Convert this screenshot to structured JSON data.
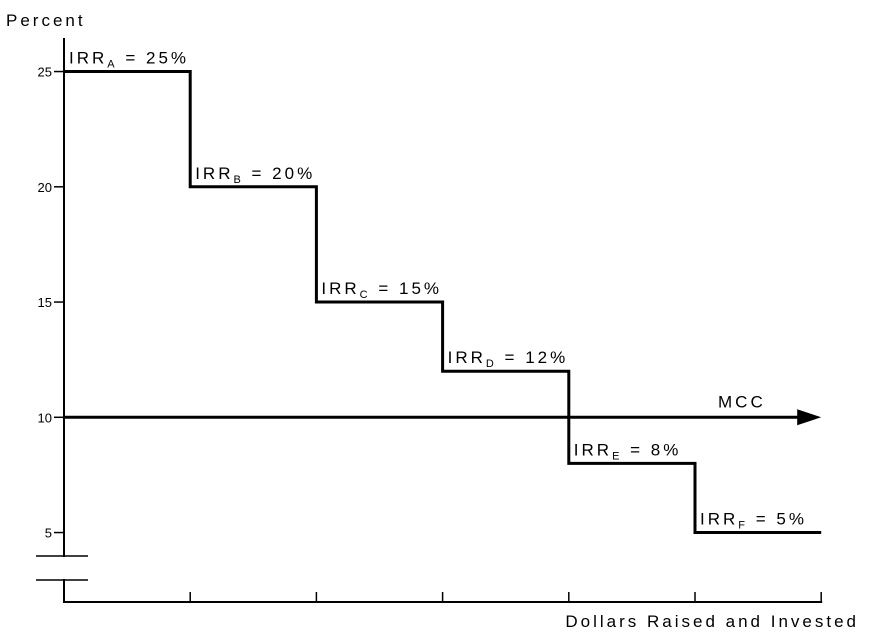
{
  "chart_data": {
    "type": "line",
    "title": "",
    "ylabel": "Percent",
    "xlabel": "Dollars Raised and Invested",
    "ylim": [
      0,
      26
    ],
    "y_ticks": [
      5,
      10,
      15,
      20,
      25
    ],
    "y_tick_labels": [
      "5",
      "10",
      "15",
      "20",
      "25"
    ],
    "x_ticks": [
      1,
      2,
      3,
      4,
      5,
      6
    ],
    "x_tick_labels": [],
    "y_axis_break": true,
    "grid": false,
    "series": [
      {
        "name": "IRR",
        "style": "step",
        "color": "#000000",
        "steps": [
          {
            "label_base": "IRR",
            "label_sub": "A",
            "label_value": " = 25%",
            "x_start": 0,
            "x_end": 1,
            "y": 25
          },
          {
            "label_base": "IRR",
            "label_sub": "B",
            "label_value": " = 20%",
            "x_start": 1,
            "x_end": 2,
            "y": 20
          },
          {
            "label_base": "IRR",
            "label_sub": "C",
            "label_value": " = 15%",
            "x_start": 2,
            "x_end": 3,
            "y": 15
          },
          {
            "label_base": "IRR",
            "label_sub": "D",
            "label_value": " = 12%",
            "x_start": 3,
            "x_end": 4,
            "y": 12
          },
          {
            "label_base": "IRR",
            "label_sub": "E",
            "label_value": " = 8%",
            "x_start": 4,
            "x_end": 5,
            "y": 8
          },
          {
            "label_base": "IRR",
            "label_sub": "F",
            "label_value": " = 5%",
            "x_start": 5,
            "x_end": 6,
            "y": 5
          }
        ]
      },
      {
        "name": "MCC",
        "style": "horizontal-arrow",
        "color": "#000000",
        "y": 10,
        "x_start": 0,
        "x_end": 6,
        "label": "MCC"
      }
    ]
  }
}
